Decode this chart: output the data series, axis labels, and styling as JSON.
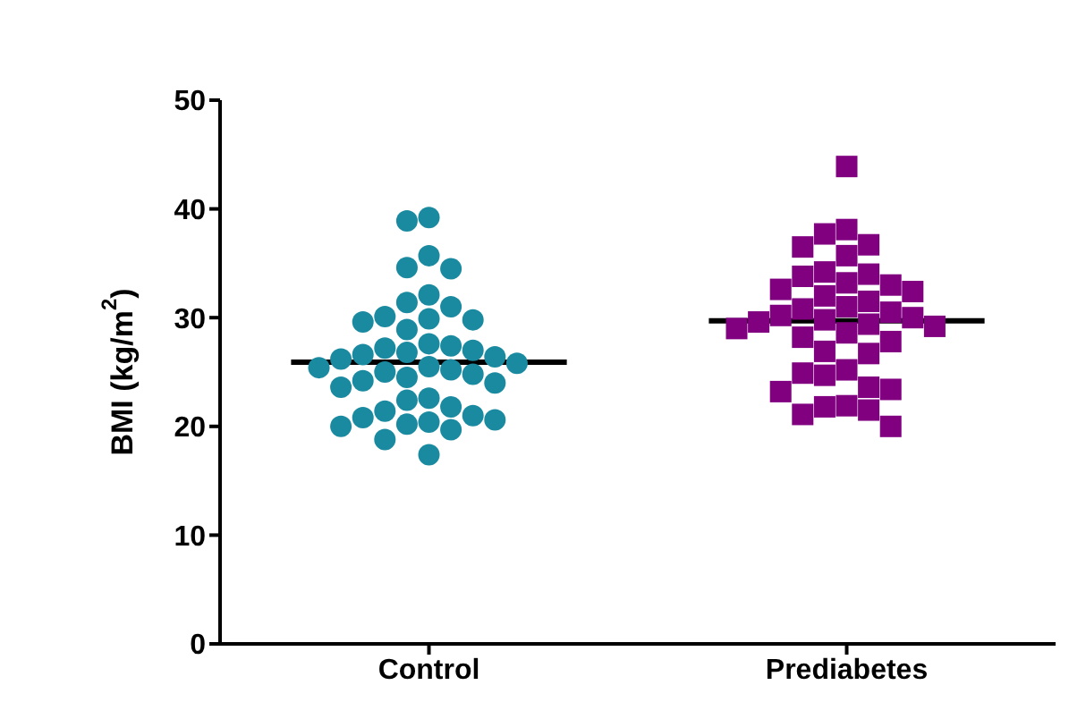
{
  "chart_data": {
    "type": "scatter",
    "ylabel": "BMI (kg/m$^{2}$)",
    "categories": [
      "Control",
      "Prediabetes"
    ],
    "ylim": [
      0,
      50
    ],
    "yticks": [
      0,
      10,
      20,
      30,
      40,
      50
    ],
    "grid": false,
    "legend": false,
    "series": [
      {
        "marker": "circle",
        "color": "#1a8aa0",
        "x": [
          "Control",
          "Control",
          "Control",
          "Control",
          "Control",
          "Control",
          "Control",
          "Control",
          "Control",
          "Control",
          "Control",
          "Control",
          "Control",
          "Control",
          "Control",
          "Control",
          "Control",
          "Control",
          "Control",
          "Control",
          "Control",
          "Control",
          "Control",
          "Control",
          "Control",
          "Control",
          "Control",
          "Control",
          "Control",
          "Control",
          "Control",
          "Control",
          "Control",
          "Control",
          "Control",
          "Control",
          "Control",
          "Control",
          "Control",
          "Control",
          "Control",
          "Control",
          "Control",
          "Control"
        ],
        "values": [
          39.2,
          38.9,
          35.7,
          34.6,
          34.5,
          32.1,
          31.4,
          31.0,
          30.1,
          29.9,
          29.8,
          29.6,
          28.9,
          27.6,
          27.4,
          27.2,
          27.0,
          26.8,
          26.6,
          26.4,
          26.2,
          25.8,
          25.5,
          25.4,
          25.2,
          25.0,
          24.8,
          24.5,
          24.2,
          24.0,
          23.6,
          22.6,
          22.4,
          21.8,
          21.4,
          21.0,
          20.8,
          20.6,
          20.4,
          20.2,
          20.0,
          19.7,
          18.8,
          17.4
        ]
      },
      {
        "marker": "square",
        "color": "#800080",
        "x": [
          "Prediabetes",
          "Prediabetes",
          "Prediabetes",
          "Prediabetes",
          "Prediabetes",
          "Prediabetes",
          "Prediabetes",
          "Prediabetes",
          "Prediabetes",
          "Prediabetes",
          "Prediabetes",
          "Prediabetes",
          "Prediabetes",
          "Prediabetes",
          "Prediabetes",
          "Prediabetes",
          "Prediabetes",
          "Prediabetes",
          "Prediabetes",
          "Prediabetes",
          "Prediabetes",
          "Prediabetes",
          "Prediabetes",
          "Prediabetes",
          "Prediabetes",
          "Prediabetes",
          "Prediabetes",
          "Prediabetes",
          "Prediabetes",
          "Prediabetes",
          "Prediabetes",
          "Prediabetes",
          "Prediabetes",
          "Prediabetes",
          "Prediabetes",
          "Prediabetes",
          "Prediabetes",
          "Prediabetes",
          "Prediabetes",
          "Prediabetes",
          "Prediabetes"
        ],
        "values": [
          43.9,
          38.1,
          37.7,
          36.7,
          36.5,
          35.7,
          34.2,
          34.0,
          33.8,
          33.2,
          33.0,
          32.6,
          32.4,
          32.0,
          31.5,
          31.0,
          30.8,
          30.5,
          30.2,
          30.0,
          29.8,
          29.6,
          29.4,
          29.2,
          29.0,
          28.6,
          28.2,
          27.8,
          26.9,
          26.7,
          25.2,
          24.9,
          24.7,
          23.6,
          23.4,
          23.2,
          21.9,
          21.8,
          21.5,
          21.1,
          20.0
        ]
      }
    ],
    "ref_lines": [
      {
        "axis": "y",
        "value": 25.9,
        "color": "#000000"
      },
      {
        "axis": "y",
        "value": 29.7,
        "color": "#000000"
      }
    ]
  }
}
